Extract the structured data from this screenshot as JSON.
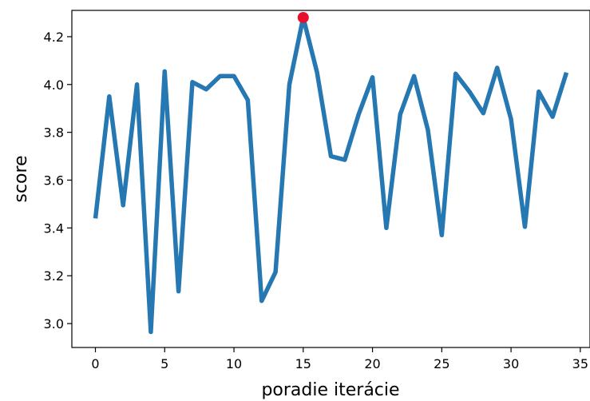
{
  "chart_data": {
    "type": "line",
    "xlabel": "poradie iterácie",
    "ylabel": "score",
    "xlim": [
      -1.7,
      35.7
    ],
    "ylim": [
      2.9,
      4.31
    ],
    "x_ticks": [
      0,
      5,
      10,
      15,
      20,
      25,
      30,
      35
    ],
    "y_ticks": [
      3.0,
      3.2,
      3.4,
      3.6,
      3.8,
      4.0,
      4.2
    ],
    "x_tick_labels": [
      "0",
      "5",
      "10",
      "15",
      "20",
      "25",
      "30",
      "35"
    ],
    "y_tick_labels": [
      "3.0",
      "3.2",
      "3.4",
      "3.6",
      "3.8",
      "4.0",
      "4.2"
    ],
    "grid": false,
    "line_color": "#2678b2",
    "highlight_color": "#e8112d",
    "series": [
      {
        "x": [
          0,
          1,
          2,
          3,
          4,
          5,
          6,
          7,
          8,
          9,
          10,
          11,
          12,
          13,
          14,
          15,
          16,
          17,
          18,
          19,
          20,
          21,
          22,
          23,
          24,
          25,
          26,
          27,
          28,
          29,
          30,
          31,
          32,
          33,
          34
        ],
        "values": [
          3.44,
          3.95,
          3.495,
          4.0,
          2.965,
          4.055,
          3.135,
          4.01,
          3.98,
          4.035,
          4.035,
          3.935,
          3.095,
          3.215,
          4.0,
          4.28,
          4.05,
          3.7,
          3.685,
          3.875,
          4.03,
          3.4,
          3.875,
          4.035,
          3.81,
          3.37,
          4.045,
          3.97,
          3.88,
          4.07,
          3.855,
          3.405,
          3.97,
          3.865,
          4.05
        ]
      }
    ],
    "highlight_point": {
      "x": 15,
      "y": 4.28
    }
  }
}
